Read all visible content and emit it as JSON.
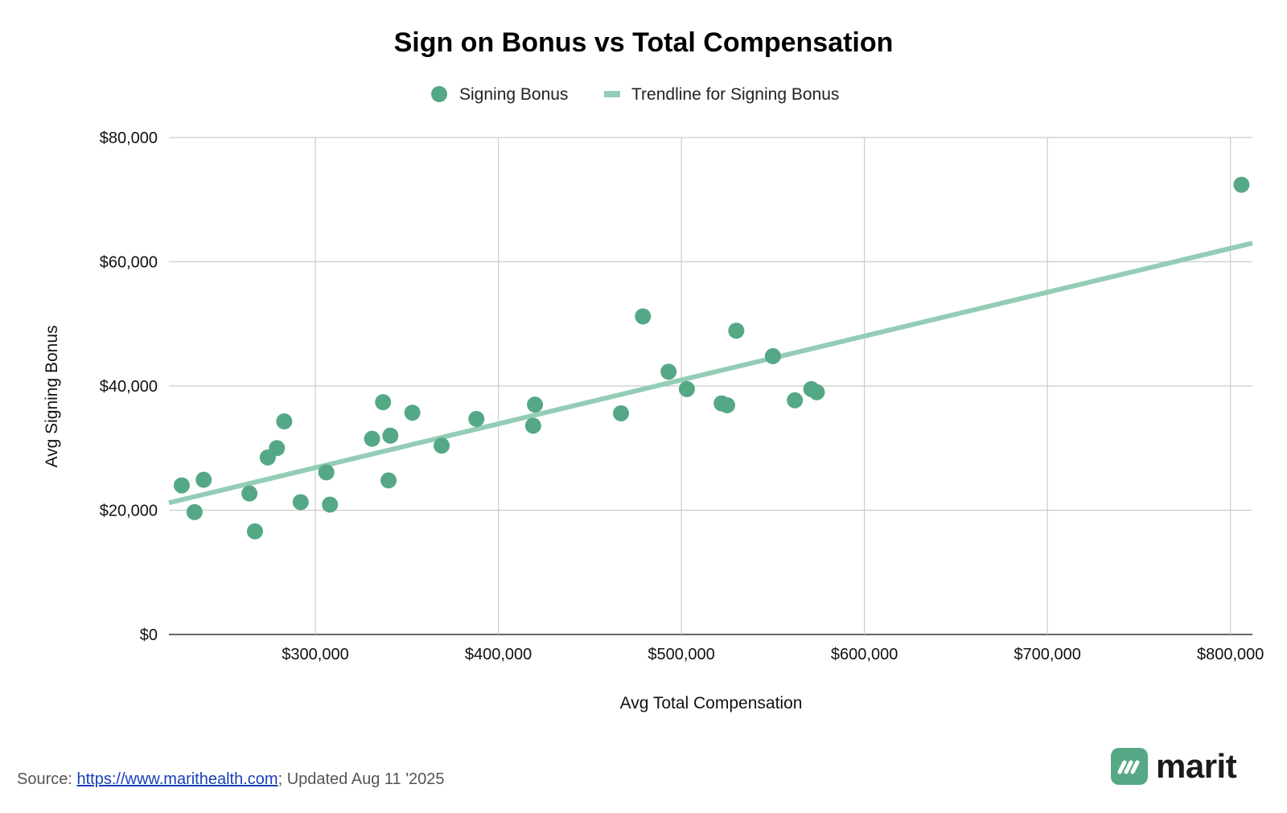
{
  "chart_data": {
    "type": "scatter",
    "title": "Sign on Bonus vs Total Compensation",
    "xlabel": "Avg Total Compensation",
    "ylabel": "Avg Signing Bonus",
    "xlim": [
      220000,
      812000
    ],
    "ylim": [
      0,
      80000
    ],
    "x_ticks": [
      300000,
      400000,
      500000,
      600000,
      700000,
      800000
    ],
    "x_tick_labels": [
      "$300,000",
      "$400,000",
      "$500,000",
      "$600,000",
      "$700,000",
      "$800,000"
    ],
    "y_ticks": [
      0,
      20000,
      40000,
      60000,
      80000
    ],
    "y_tick_labels": [
      "$0",
      "$20,000",
      "$40,000",
      "$60,000",
      "$80,000"
    ],
    "grid": true,
    "legend_position": "top",
    "series": [
      {
        "name": "Signing Bonus",
        "color": "#55a886",
        "points": [
          [
            227000,
            24000
          ],
          [
            234000,
            19700
          ],
          [
            239000,
            24900
          ],
          [
            264000,
            22700
          ],
          [
            267000,
            16600
          ],
          [
            274000,
            28500
          ],
          [
            279000,
            30000
          ],
          [
            283000,
            34300
          ],
          [
            292000,
            21300
          ],
          [
            306000,
            26100
          ],
          [
            308000,
            20900
          ],
          [
            331000,
            31500
          ],
          [
            337000,
            37400
          ],
          [
            340000,
            24800
          ],
          [
            341000,
            32000
          ],
          [
            353000,
            35700
          ],
          [
            369000,
            30400
          ],
          [
            388000,
            34700
          ],
          [
            419000,
            33600
          ],
          [
            420000,
            37000
          ],
          [
            467000,
            35600
          ],
          [
            479000,
            51200
          ],
          [
            493000,
            42300
          ],
          [
            503000,
            39500
          ],
          [
            522000,
            37200
          ],
          [
            525000,
            36900
          ],
          [
            530000,
            48900
          ],
          [
            550000,
            44800
          ],
          [
            562000,
            37700
          ],
          [
            571000,
            39500
          ],
          [
            574000,
            39000
          ],
          [
            806000,
            72400
          ]
        ]
      }
    ],
    "trendline": {
      "name": "Trendline for Signing Bonus",
      "color": "#94cdb6",
      "x": [
        220000,
        812000
      ],
      "y": [
        21200,
        63000
      ]
    }
  },
  "footer": {
    "source_label": "Source: ",
    "source_link": "https://www.marithealth.com",
    "updated": "; Updated Aug 11 '2025"
  },
  "brand": {
    "name": "marit",
    "color": "#56a886"
  }
}
